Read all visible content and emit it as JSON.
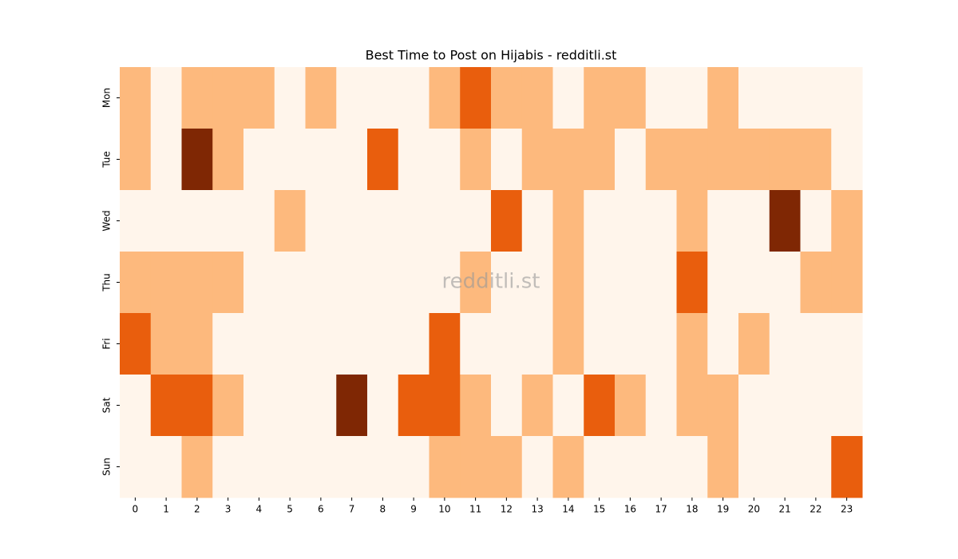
{
  "chart_data": {
    "type": "heatmap",
    "title": "Best Time to Post on Hijabis - redditli.st",
    "watermark": "redditli.st",
    "x": [
      0,
      1,
      2,
      3,
      4,
      5,
      6,
      7,
      8,
      9,
      10,
      11,
      12,
      13,
      14,
      15,
      16,
      17,
      18,
      19,
      20,
      21,
      22,
      23
    ],
    "y": [
      "Mon",
      "Tue",
      "Wed",
      "Thu",
      "Fri",
      "Sat",
      "Sun"
    ],
    "colors": [
      "#fff5eb",
      "#fdb97d",
      "#e95e0d",
      "#7f2704"
    ],
    "values": [
      [
        1,
        0,
        1,
        1,
        1,
        0,
        1,
        0,
        0,
        0,
        1,
        2,
        1,
        1,
        0,
        1,
        1,
        0,
        0,
        1,
        0,
        0,
        0,
        0
      ],
      [
        1,
        0,
        3,
        1,
        0,
        0,
        0,
        0,
        2,
        0,
        0,
        1,
        0,
        1,
        1,
        1,
        0,
        1,
        1,
        1,
        1,
        1,
        1,
        0
      ],
      [
        0,
        0,
        0,
        0,
        0,
        1,
        0,
        0,
        0,
        0,
        0,
        0,
        2,
        0,
        1,
        0,
        0,
        0,
        1,
        0,
        0,
        3,
        0,
        1
      ],
      [
        1,
        1,
        1,
        1,
        0,
        0,
        0,
        0,
        0,
        0,
        0,
        1,
        0,
        0,
        1,
        0,
        0,
        0,
        2,
        0,
        0,
        0,
        1,
        1
      ],
      [
        2,
        1,
        1,
        0,
        0,
        0,
        0,
        0,
        0,
        0,
        2,
        0,
        0,
        0,
        1,
        0,
        0,
        0,
        1,
        0,
        1,
        0,
        0,
        0
      ],
      [
        0,
        2,
        2,
        1,
        0,
        0,
        0,
        3,
        0,
        2,
        2,
        1,
        0,
        1,
        0,
        2,
        1,
        0,
        1,
        1,
        0,
        0,
        0,
        0
      ],
      [
        0,
        0,
        1,
        0,
        0,
        0,
        0,
        0,
        0,
        0,
        1,
        1,
        1,
        0,
        1,
        0,
        0,
        0,
        0,
        1,
        0,
        0,
        0,
        2
      ]
    ]
  }
}
